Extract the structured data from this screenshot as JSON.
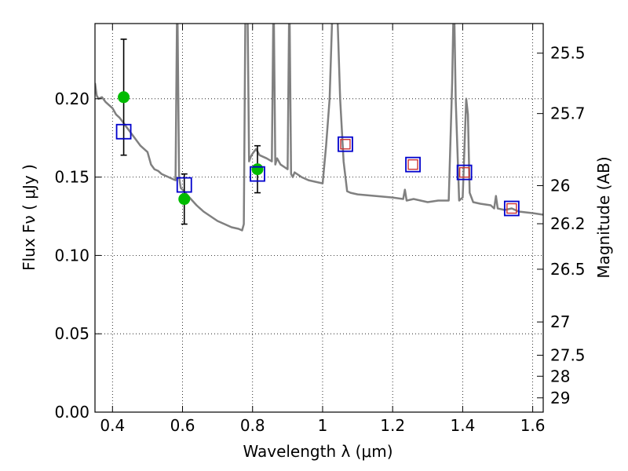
{
  "chart_data": {
    "type": "scatter",
    "title": "",
    "xlabel": "Wavelength  λ (μm)",
    "ylabel": "Flux  Fν  ( μJy )",
    "ylabel_right": "Magnitude (AB)",
    "xlim": [
      0.35,
      1.63
    ],
    "ylim": [
      0.0,
      0.248
    ],
    "grid": true,
    "x_ticks": [
      {
        "value": 0.4,
        "label": "0.4"
      },
      {
        "value": 0.6,
        "label": "0.6"
      },
      {
        "value": 0.8,
        "label": "0.8"
      },
      {
        "value": 1.0,
        "label": "1"
      },
      {
        "value": 1.2,
        "label": "1.2"
      },
      {
        "value": 1.4,
        "label": "1.4"
      },
      {
        "value": 1.6,
        "label": "1.6"
      }
    ],
    "y_ticks": [
      {
        "value": 0.0,
        "label": "0.00"
      },
      {
        "value": 0.05,
        "label": "0.05"
      },
      {
        "value": 0.1,
        "label": "0.10"
      },
      {
        "value": 0.15,
        "label": "0.15"
      },
      {
        "value": 0.2,
        "label": "0.20"
      }
    ],
    "right_ticks": [
      {
        "mag": 25.5,
        "label": "25.5"
      },
      {
        "mag": 25.7,
        "label": "25.7"
      },
      {
        "mag": 26,
        "label": "26"
      },
      {
        "mag": 26.2,
        "label": "26.2"
      },
      {
        "mag": 26.5,
        "label": "26.5"
      },
      {
        "mag": 27,
        "label": "27"
      },
      {
        "mag": 27.5,
        "label": "27.5"
      },
      {
        "mag": 28,
        "label": "28"
      },
      {
        "mag": 29,
        "label": "29"
      }
    ],
    "series": [
      {
        "kind": "line",
        "color": "#808080",
        "x": [
          0.35,
          0.355,
          0.36,
          0.37,
          0.38,
          0.39,
          0.4,
          0.41,
          0.42,
          0.43,
          0.44,
          0.46,
          0.48,
          0.5,
          0.51,
          0.52,
          0.53,
          0.54,
          0.55,
          0.56,
          0.57,
          0.58,
          0.585,
          0.59,
          0.595,
          0.6,
          0.62,
          0.64,
          0.66,
          0.68,
          0.7,
          0.72,
          0.74,
          0.76,
          0.77,
          0.775,
          0.78,
          0.785,
          0.79,
          0.795,
          0.8,
          0.81,
          0.82,
          0.84,
          0.855,
          0.86,
          0.865,
          0.87,
          0.88,
          0.9,
          0.905,
          0.91,
          0.915,
          0.92,
          0.94,
          0.96,
          0.98,
          1.0,
          1.01,
          1.02,
          1.03,
          1.04,
          1.05,
          1.06,
          1.07,
          1.08,
          1.1,
          1.15,
          1.2,
          1.23,
          1.235,
          1.24,
          1.26,
          1.3,
          1.33,
          1.36,
          1.37,
          1.375,
          1.38,
          1.39,
          1.4,
          1.41,
          1.415,
          1.42,
          1.43,
          1.45,
          1.48,
          1.49,
          1.495,
          1.5,
          1.52,
          1.54,
          1.56,
          1.6,
          1.63
        ],
        "y": [
          0.21,
          0.202,
          0.2,
          0.201,
          0.198,
          0.196,
          0.194,
          0.19,
          0.188,
          0.185,
          0.182,
          0.176,
          0.17,
          0.166,
          0.158,
          0.155,
          0.154,
          0.152,
          0.151,
          0.15,
          0.149,
          0.148,
          0.27,
          0.15,
          0.143,
          0.142,
          0.137,
          0.132,
          0.128,
          0.125,
          0.122,
          0.12,
          0.118,
          0.117,
          0.116,
          0.12,
          0.27,
          0.27,
          0.16,
          0.163,
          0.165,
          0.168,
          0.164,
          0.162,
          0.16,
          0.27,
          0.158,
          0.162,
          0.158,
          0.155,
          0.27,
          0.152,
          0.15,
          0.153,
          0.15,
          0.148,
          0.147,
          0.146,
          0.17,
          0.2,
          0.27,
          0.27,
          0.2,
          0.16,
          0.141,
          0.14,
          0.139,
          0.138,
          0.137,
          0.136,
          0.142,
          0.135,
          0.136,
          0.134,
          0.135,
          0.135,
          0.21,
          0.27,
          0.2,
          0.135,
          0.137,
          0.2,
          0.19,
          0.14,
          0.134,
          0.133,
          0.132,
          0.13,
          0.138,
          0.13,
          0.129,
          0.13,
          0.128,
          0.127,
          0.126
        ]
      },
      {
        "kind": "points",
        "name": "",
        "marker": "circle",
        "color": "#00bb00",
        "x": [
          0.432,
          0.605,
          0.814
        ],
        "y": [
          0.201,
          0.136,
          0.155
        ],
        "yerr": [
          0.037,
          0.016,
          0.015
        ]
      },
      {
        "kind": "points",
        "name": "",
        "marker": "square",
        "color": "#0000cc",
        "x": [
          0.432,
          0.605,
          0.814,
          1.065,
          1.258,
          1.405,
          1.54
        ],
        "y": [
          0.179,
          0.145,
          0.152,
          0.171,
          0.158,
          0.153,
          0.13
        ]
      },
      {
        "kind": "points",
        "name": "",
        "marker": "square-small",
        "color": "#cc3333",
        "x": [
          1.065,
          1.258,
          1.405,
          1.54
        ],
        "y": [
          0.171,
          0.158,
          0.153,
          0.13
        ]
      }
    ]
  }
}
